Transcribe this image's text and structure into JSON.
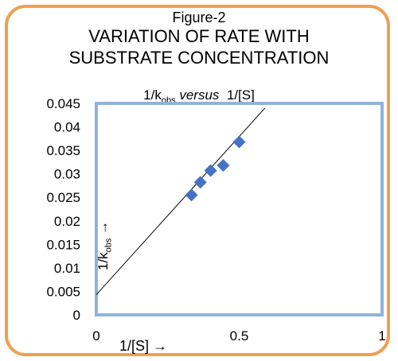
{
  "figure_label": "Figure-2",
  "title_line1": "VARIATION OF RATE WITH",
  "title_line2": "SUBSTRATE CONCENTRATION",
  "subtitle": {
    "prefix": "1/k",
    "sub": "obs",
    "italic": "versus",
    "suffix": "1/[S]"
  },
  "colors": {
    "frame": "#f0a050",
    "plot_border": "#8fb4d9",
    "marker": "#4472c4",
    "line": "#000000"
  },
  "chart_data": {
    "type": "scatter",
    "title": "1/kobs versus 1/[S]",
    "xlabel": "1/[S] →",
    "ylabel": "1/kobs →",
    "xlim": [
      0,
      1
    ],
    "ylim": [
      0,
      0.045
    ],
    "x_ticks": [
      "0",
      "0.5",
      "1"
    ],
    "y_ticks": [
      "0",
      "0.005",
      "0.01",
      "0.015",
      "0.02",
      "0.025",
      "0.03",
      "0.035",
      "0.04",
      "0.045"
    ],
    "grid": false,
    "points": [
      {
        "x": 0.333,
        "y": 0.0255
      },
      {
        "x": 0.364,
        "y": 0.0282
      },
      {
        "x": 0.4,
        "y": 0.0307
      },
      {
        "x": 0.444,
        "y": 0.0318
      },
      {
        "x": 0.5,
        "y": 0.0368
      }
    ],
    "trendline": {
      "x": [
        0,
        0.59
      ],
      "y": [
        0.0043,
        0.044
      ]
    }
  }
}
